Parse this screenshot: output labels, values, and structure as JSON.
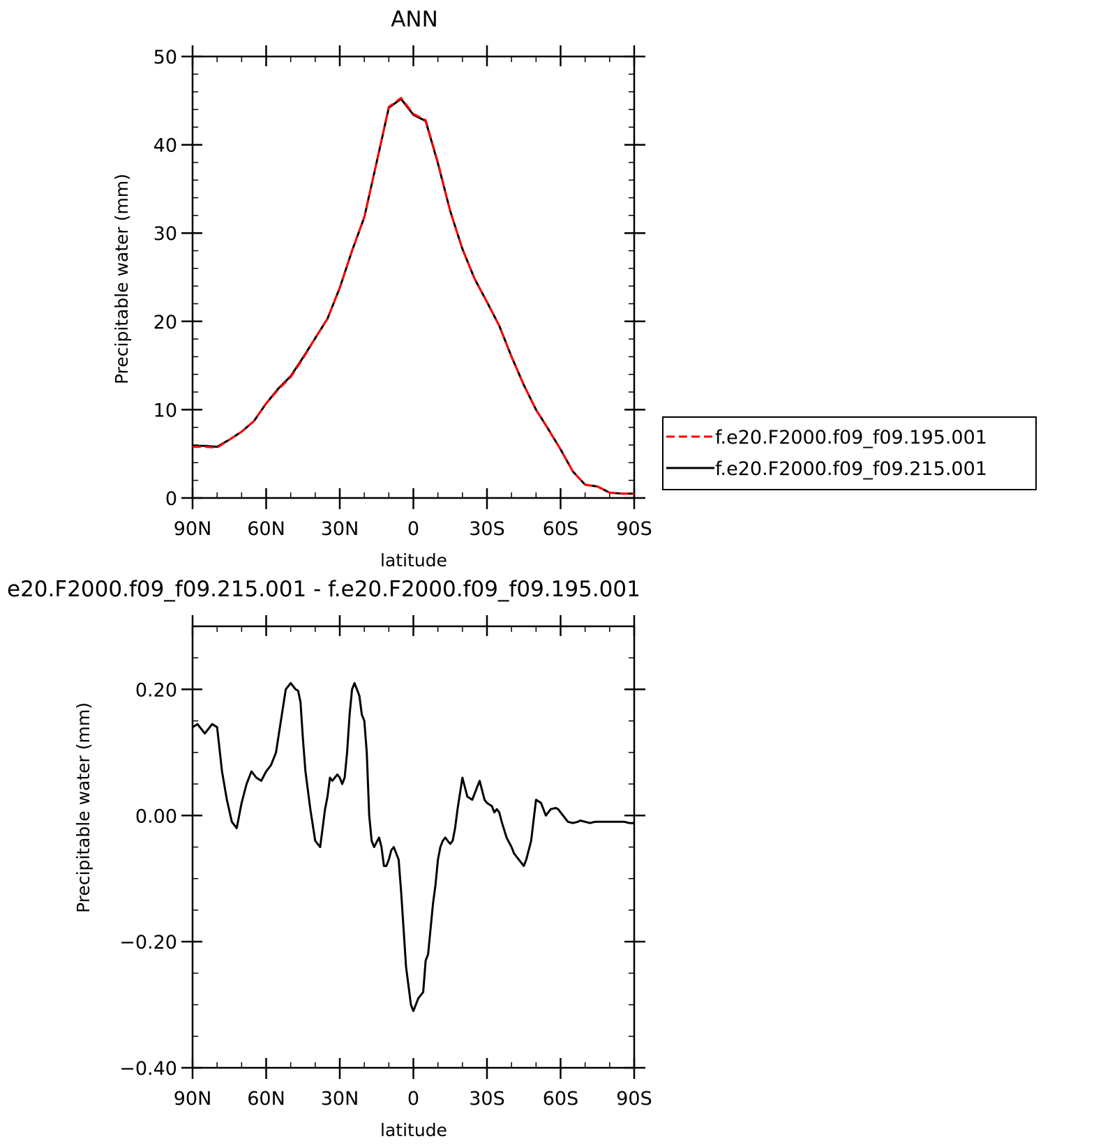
{
  "chart_data": [
    {
      "type": "line",
      "title": "ANN",
      "xlabel": "latitude",
      "ylabel": "Precipitable water (mm)",
      "xlim": [
        90,
        -90
      ],
      "ylim": [
        0,
        50
      ],
      "xticks": [
        {
          "value": 90,
          "label": "90N"
        },
        {
          "value": 60,
          "label": "60N"
        },
        {
          "value": 30,
          "label": "30N"
        },
        {
          "value": 0,
          "label": "0"
        },
        {
          "value": -30,
          "label": "30S"
        },
        {
          "value": -60,
          "label": "60S"
        },
        {
          "value": -90,
          "label": "90S"
        }
      ],
      "yticks": [
        {
          "value": 0,
          "label": "0"
        },
        {
          "value": 10,
          "label": "10"
        },
        {
          "value": 20,
          "label": "20"
        },
        {
          "value": 30,
          "label": "30"
        },
        {
          "value": 40,
          "label": "40"
        },
        {
          "value": 50,
          "label": "50"
        }
      ],
      "legend_position": "right",
      "series": [
        {
          "name": "f.e20.F2000.f09_f09.195.001",
          "color": "#ff0000",
          "style": "dashed",
          "x": [
            90,
            85,
            80,
            75,
            70,
            65,
            60,
            55,
            50,
            45,
            40,
            35,
            30,
            25,
            20,
            15,
            10,
            5,
            0,
            -5,
            -10,
            -15,
            -20,
            -25,
            -30,
            -35,
            -40,
            -45,
            -50,
            -55,
            -60,
            -65,
            -70,
            -75,
            -80,
            -85,
            -90
          ],
          "y": [
            5.8,
            5.8,
            5.7,
            6.6,
            7.5,
            8.7,
            10.7,
            12.3,
            13.7,
            15.8,
            18.1,
            20.3,
            23.8,
            28.0,
            31.8,
            38.0,
            44.3,
            45.3,
            43.5,
            42.8,
            38.0,
            32.5,
            28.2,
            24.8,
            22.2,
            19.5,
            16.0,
            12.8,
            10.0,
            7.8,
            5.5,
            3.0,
            1.5,
            1.3,
            0.6,
            0.5,
            0.5
          ]
        },
        {
          "name": "f.e20.F2000.f09_f09.215.001",
          "color": "#000000",
          "style": "solid",
          "x": [
            90,
            85,
            80,
            75,
            70,
            65,
            60,
            55,
            50,
            45,
            40,
            35,
            30,
            25,
            20,
            15,
            10,
            5,
            0,
            -5,
            -10,
            -15,
            -20,
            -25,
            -30,
            -35,
            -40,
            -45,
            -50,
            -55,
            -60,
            -65,
            -70,
            -75,
            -80,
            -85,
            -90
          ],
          "y": [
            5.9,
            5.9,
            5.8,
            6.6,
            7.5,
            8.7,
            10.7,
            12.4,
            13.8,
            15.9,
            18.1,
            20.3,
            23.8,
            28.0,
            31.8,
            38.0,
            44.2,
            45.2,
            43.4,
            42.7,
            37.9,
            32.5,
            28.2,
            24.8,
            22.2,
            19.5,
            16.0,
            12.8,
            10.0,
            7.8,
            5.5,
            3.0,
            1.5,
            1.3,
            0.6,
            0.5,
            0.5
          ]
        }
      ]
    },
    {
      "type": "line",
      "title": "e20.F2000.f09_f09.215.001 - f.e20.F2000.f09_f09.195.001",
      "xlabel": "latitude",
      "ylabel": "Precipitable water (mm)",
      "xlim": [
        90,
        -90
      ],
      "ylim": [
        -0.4,
        0.3
      ],
      "xticks": [
        {
          "value": 90,
          "label": "90N"
        },
        {
          "value": 60,
          "label": "60N"
        },
        {
          "value": 30,
          "label": "30N"
        },
        {
          "value": 0,
          "label": "0"
        },
        {
          "value": -30,
          "label": "30S"
        },
        {
          "value": -60,
          "label": "60S"
        },
        {
          "value": -90,
          "label": "90S"
        }
      ],
      "yticks": [
        {
          "value": -0.4,
          "label": "−0.40"
        },
        {
          "value": -0.2,
          "label": "−0.20"
        },
        {
          "value": 0.0,
          "label": "0.00"
        },
        {
          "value": 0.2,
          "label": "0.20"
        }
      ],
      "series": [
        {
          "name": "",
          "color": "#000000",
          "style": "solid",
          "x": [
            90,
            88,
            85,
            82,
            80,
            78,
            76,
            74,
            72,
            71,
            70,
            68,
            66,
            64,
            62,
            60,
            58,
            56,
            54,
            52,
            50,
            49,
            48,
            47,
            46,
            45,
            44,
            42,
            40,
            38,
            37,
            36,
            35,
            34,
            33,
            31,
            30,
            29,
            28,
            27,
            26,
            25,
            24,
            22,
            21,
            20,
            19,
            18,
            17,
            16,
            14,
            13,
            12,
            11,
            10,
            9,
            8,
            7,
            6,
            5,
            3,
            1,
            0,
            -1,
            -2,
            -3,
            -4,
            -5,
            -6,
            -7,
            -8,
            -9,
            -10,
            -11,
            -12,
            -13,
            -14,
            -15,
            -16,
            -17,
            -18,
            -20,
            -22,
            -24,
            -26,
            -27,
            -28,
            -29,
            -30,
            -32,
            -33,
            -34,
            -35,
            -36,
            -38,
            -40,
            -41,
            -42,
            -44,
            -45,
            -46,
            -48,
            -50,
            -52,
            -54,
            -56,
            -58,
            -59,
            -60,
            -61,
            -63,
            -65,
            -67,
            -68,
            -70,
            -72,
            -74,
            -76,
            -78,
            -80,
            -82,
            -84,
            -86,
            -88,
            -90
          ],
          "y": [
            0.14,
            0.145,
            0.13,
            0.145,
            0.14,
            0.07,
            0.025,
            -0.01,
            -0.02,
            0.0,
            0.02,
            0.05,
            0.07,
            0.06,
            0.055,
            0.07,
            0.08,
            0.1,
            0.15,
            0.2,
            0.21,
            0.205,
            0.2,
            0.198,
            0.18,
            0.12,
            0.07,
            0.01,
            -0.04,
            -0.05,
            -0.02,
            0.01,
            0.03,
            0.06,
            0.055,
            0.065,
            0.06,
            0.05,
            0.06,
            0.1,
            0.16,
            0.2,
            0.21,
            0.19,
            0.16,
            0.15,
            0.1,
            0.0,
            -0.04,
            -0.05,
            -0.035,
            -0.05,
            -0.08,
            -0.08,
            -0.07,
            -0.055,
            -0.05,
            -0.06,
            -0.07,
            -0.12,
            -0.24,
            -0.3,
            -0.31,
            -0.3,
            -0.29,
            -0.285,
            -0.28,
            -0.23,
            -0.22,
            -0.18,
            -0.14,
            -0.11,
            -0.07,
            -0.05,
            -0.04,
            -0.035,
            -0.04,
            -0.045,
            -0.04,
            -0.02,
            0.01,
            0.06,
            0.03,
            0.025,
            0.045,
            0.055,
            0.04,
            0.025,
            0.02,
            0.015,
            0.005,
            0.01,
            0.005,
            -0.01,
            -0.035,
            -0.05,
            -0.06,
            -0.065,
            -0.075,
            -0.08,
            -0.07,
            -0.04,
            0.025,
            0.02,
            0.0,
            0.01,
            0.012,
            0.01,
            0.005,
            0.0,
            -0.01,
            -0.012,
            -0.01,
            -0.008,
            -0.01,
            -0.012,
            -0.01,
            -0.01,
            -0.01,
            -0.01,
            -0.01,
            -0.01,
            -0.01,
            -0.012,
            -0.012
          ]
        }
      ]
    }
  ]
}
